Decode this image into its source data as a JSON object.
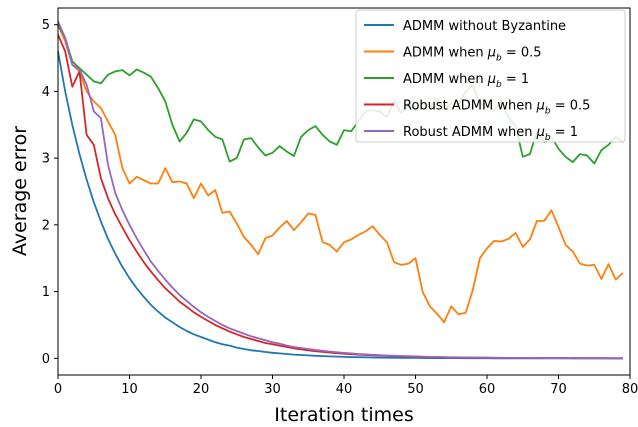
{
  "chart_data": {
    "type": "line",
    "xlabel": "Iteration times",
    "ylabel": "Average error",
    "xlim": [
      0,
      80
    ],
    "ylim": [
      -0.25,
      5.25
    ],
    "xticks": [
      "0",
      "10",
      "20",
      "30",
      "40",
      "50",
      "60",
      "70",
      "80"
    ],
    "yticks": [
      "0",
      "1",
      "2",
      "3",
      "4",
      "5"
    ],
    "grid": false,
    "legend_position": "top-right",
    "series": [
      {
        "name": "ADMM without Byzantine",
        "color": "#1f77b4",
        "x": [
          0,
          1,
          2,
          3,
          4,
          5,
          6,
          7,
          8,
          9,
          10,
          11,
          12,
          13,
          14,
          15,
          16,
          17,
          18,
          19,
          20,
          21,
          22,
          23,
          24,
          25,
          26,
          27,
          28,
          29,
          30,
          31,
          32,
          33,
          34,
          35,
          36,
          37,
          38,
          39,
          40,
          41,
          42,
          43,
          44,
          45,
          46,
          47,
          48,
          49,
          50,
          51,
          52,
          53,
          54,
          55,
          56,
          57,
          58,
          59,
          60,
          61,
          62,
          63,
          64,
          65,
          66,
          67,
          68,
          69,
          70,
          71,
          72,
          73,
          74,
          75,
          76,
          77,
          78,
          79
        ],
        "values": [
          4.6,
          4.0,
          3.5,
          3.06,
          2.68,
          2.34,
          2.05,
          1.79,
          1.57,
          1.37,
          1.2,
          1.05,
          0.92,
          0.8,
          0.7,
          0.61,
          0.54,
          0.47,
          0.41,
          0.36,
          0.32,
          0.28,
          0.24,
          0.21,
          0.19,
          0.16,
          0.14,
          0.12,
          0.11,
          0.095,
          0.083,
          0.073,
          0.064,
          0.056,
          0.049,
          0.043,
          0.037,
          0.033,
          0.029,
          0.025,
          0.022,
          0.019,
          0.017,
          0.015,
          0.013,
          0.011,
          0.01,
          0.009,
          0.008,
          0.007,
          0.006,
          0.005,
          0.004,
          0.004,
          0.003,
          0.003,
          0.003,
          0.002,
          0.002,
          0.002,
          0.002,
          0.001,
          0.001,
          0.001,
          0.001,
          0.001,
          0.001,
          0.001,
          0.001,
          0.001,
          0.0,
          0.0,
          0.0,
          0.0,
          0.0,
          0.0,
          0.0,
          0.0,
          0.0,
          0.0
        ]
      },
      {
        "name": "ADMM when μb = 0.5",
        "color": "#ff7f0e",
        "x": [
          0,
          1,
          2,
          3,
          4,
          5,
          6,
          7,
          8,
          9,
          10,
          11,
          12,
          13,
          14,
          15,
          16,
          17,
          18,
          19,
          20,
          21,
          22,
          23,
          24,
          25,
          26,
          27,
          28,
          29,
          30,
          31,
          32,
          33,
          34,
          35,
          36,
          37,
          38,
          39,
          40,
          41,
          42,
          43,
          44,
          45,
          46,
          47,
          48,
          49,
          50,
          51,
          52,
          53,
          54,
          55,
          56,
          57,
          58,
          59,
          60,
          61,
          62,
          63,
          64,
          65,
          66,
          67,
          68,
          69,
          70,
          71,
          72,
          73,
          74,
          75,
          76,
          77,
          78,
          79
        ],
        "values": [
          5.0,
          4.75,
          4.4,
          4.3,
          4.0,
          3.85,
          3.75,
          3.55,
          3.35,
          2.85,
          2.62,
          2.72,
          2.67,
          2.62,
          2.62,
          2.85,
          2.64,
          2.65,
          2.62,
          2.4,
          2.62,
          2.44,
          2.52,
          2.18,
          2.2,
          2.02,
          1.82,
          1.7,
          1.56,
          1.8,
          1.84,
          1.96,
          2.06,
          1.92,
          2.04,
          2.17,
          2.15,
          1.74,
          1.7,
          1.6,
          1.74,
          1.78,
          1.85,
          1.9,
          1.98,
          1.85,
          1.74,
          1.44,
          1.4,
          1.42,
          1.5,
          1.0,
          0.78,
          0.67,
          0.54,
          0.78,
          0.66,
          0.68,
          1.02,
          1.5,
          1.65,
          1.76,
          1.75,
          1.79,
          1.88,
          1.67,
          1.78,
          2.06,
          2.06,
          2.22,
          1.97,
          1.7,
          1.6,
          1.42,
          1.39,
          1.4,
          1.19,
          1.41,
          1.18,
          1.28
        ]
      },
      {
        "name": "ADMM when μb = 1",
        "color": "#2ca02c",
        "x": [
          0,
          1,
          2,
          3,
          4,
          5,
          6,
          7,
          8,
          9,
          10,
          11,
          12,
          13,
          14,
          15,
          16,
          17,
          18,
          19,
          20,
          21,
          22,
          23,
          24,
          25,
          26,
          27,
          28,
          29,
          30,
          31,
          32,
          33,
          34,
          35,
          36,
          37,
          38,
          39,
          40,
          41,
          42,
          43,
          44,
          45,
          46,
          47,
          48,
          49,
          50,
          51,
          52,
          53,
          54,
          55,
          56,
          57,
          58,
          59,
          60,
          61,
          62,
          63,
          64,
          65,
          66,
          67,
          68,
          69,
          70,
          71,
          72,
          73,
          74,
          75,
          76,
          77,
          78,
          79
        ],
        "values": [
          5.0,
          4.8,
          4.45,
          4.35,
          4.25,
          4.15,
          4.12,
          4.25,
          4.3,
          4.32,
          4.24,
          4.33,
          4.28,
          4.22,
          4.05,
          3.85,
          3.5,
          3.25,
          3.38,
          3.58,
          3.55,
          3.42,
          3.32,
          3.28,
          2.95,
          3.0,
          3.28,
          3.3,
          3.16,
          3.04,
          3.08,
          3.18,
          3.1,
          3.03,
          3.32,
          3.42,
          3.48,
          3.35,
          3.25,
          3.2,
          3.42,
          3.4,
          3.55,
          3.7,
          3.72,
          3.7,
          3.62,
          3.86,
          3.68,
          3.82,
          3.72,
          3.82,
          3.76,
          3.88,
          3.72,
          3.82,
          3.8,
          4.0,
          4.1,
          3.82,
          3.78,
          3.72,
          3.84,
          3.62,
          3.48,
          3.02,
          3.06,
          3.4,
          3.24,
          3.32,
          3.14,
          3.02,
          2.94,
          3.06,
          3.04,
          2.92,
          3.12,
          3.2,
          3.32,
          3.24
        ]
      },
      {
        "name": "Robust ADMM when μb = 0.5",
        "color": "#d62728",
        "x": [
          0,
          1,
          2,
          3,
          4,
          5,
          6,
          7,
          8,
          9,
          10,
          11,
          12,
          13,
          14,
          15,
          16,
          17,
          18,
          19,
          20,
          21,
          22,
          23,
          24,
          25,
          26,
          27,
          28,
          29,
          30,
          31,
          32,
          33,
          34,
          35,
          36,
          37,
          38,
          39,
          40,
          41,
          42,
          43,
          44,
          45,
          46,
          47,
          48,
          49,
          50,
          51,
          52,
          53,
          54,
          55,
          56,
          57,
          58,
          59,
          60,
          61,
          62,
          63,
          64,
          65,
          66,
          67,
          68,
          69,
          70,
          71,
          72,
          73,
          74,
          75,
          76,
          77,
          78,
          79
        ],
        "values": [
          4.85,
          4.6,
          4.07,
          4.3,
          3.35,
          3.2,
          2.7,
          2.4,
          2.16,
          1.96,
          1.77,
          1.6,
          1.44,
          1.3,
          1.17,
          1.05,
          0.95,
          0.85,
          0.77,
          0.69,
          0.62,
          0.56,
          0.5,
          0.45,
          0.4,
          0.36,
          0.32,
          0.29,
          0.26,
          0.23,
          0.21,
          0.19,
          0.17,
          0.15,
          0.135,
          0.12,
          0.107,
          0.096,
          0.086,
          0.077,
          0.069,
          0.062,
          0.055,
          0.049,
          0.044,
          0.04,
          0.036,
          0.032,
          0.029,
          0.026,
          0.023,
          0.021,
          0.019,
          0.017,
          0.015,
          0.014,
          0.012,
          0.011,
          0.01,
          0.009,
          0.008,
          0.007,
          0.006,
          0.006,
          0.005,
          0.005,
          0.004,
          0.004,
          0.003,
          0.003,
          0.003,
          0.003,
          0.002,
          0.002,
          0.002,
          0.002,
          0.002,
          0.001,
          0.001,
          0.001
        ]
      },
      {
        "name": "Robust ADMM when μb = 1",
        "color": "#9467bd",
        "x": [
          0,
          1,
          2,
          3,
          4,
          5,
          6,
          7,
          8,
          9,
          10,
          11,
          12,
          13,
          14,
          15,
          16,
          17,
          18,
          19,
          20,
          21,
          22,
          23,
          24,
          25,
          26,
          27,
          28,
          29,
          30,
          31,
          32,
          33,
          34,
          35,
          36,
          37,
          38,
          39,
          40,
          41,
          42,
          43,
          44,
          45,
          46,
          47,
          48,
          49,
          50,
          51,
          52,
          53,
          54,
          55,
          56,
          57,
          58,
          59,
          60,
          61,
          62,
          63,
          64,
          65,
          66,
          67,
          68,
          69,
          70,
          71,
          72,
          73,
          74,
          75,
          76,
          77,
          78,
          79
        ],
        "values": [
          5.05,
          4.8,
          4.4,
          4.33,
          4.1,
          3.7,
          3.6,
          2.9,
          2.48,
          2.22,
          2.0,
          1.8,
          1.62,
          1.45,
          1.31,
          1.18,
          1.06,
          0.95,
          0.86,
          0.77,
          0.69,
          0.62,
          0.56,
          0.5,
          0.45,
          0.41,
          0.37,
          0.33,
          0.3,
          0.27,
          0.24,
          0.22,
          0.19,
          0.17,
          0.155,
          0.14,
          0.125,
          0.112,
          0.1,
          0.09,
          0.081,
          0.073,
          0.065,
          0.059,
          0.053,
          0.047,
          0.042,
          0.038,
          0.034,
          0.031,
          0.028,
          0.025,
          0.022,
          0.02,
          0.018,
          0.016,
          0.015,
          0.013,
          0.012,
          0.011,
          0.01,
          0.009,
          0.008,
          0.007,
          0.006,
          0.006,
          0.005,
          0.005,
          0.004,
          0.004,
          0.003,
          0.003,
          0.003,
          0.002,
          0.002,
          0.002,
          0.002,
          0.002,
          0.001,
          0.001
        ]
      }
    ],
    "legend": [
      {
        "prefix": "ADMM without Byzantine",
        "mu": "",
        "suffix": ""
      },
      {
        "prefix": "ADMM when ",
        "mu": "μ",
        "sub": "b",
        "suffix": " = 0.5"
      },
      {
        "prefix": "ADMM when ",
        "mu": "μ",
        "sub": "b",
        "suffix": " = 1"
      },
      {
        "prefix": "Robust ADMM when ",
        "mu": "μ",
        "sub": "b",
        "suffix": " = 0.5"
      },
      {
        "prefix": "Robust ADMM when ",
        "mu": "μ",
        "sub": "b",
        "suffix": " = 1"
      }
    ]
  }
}
